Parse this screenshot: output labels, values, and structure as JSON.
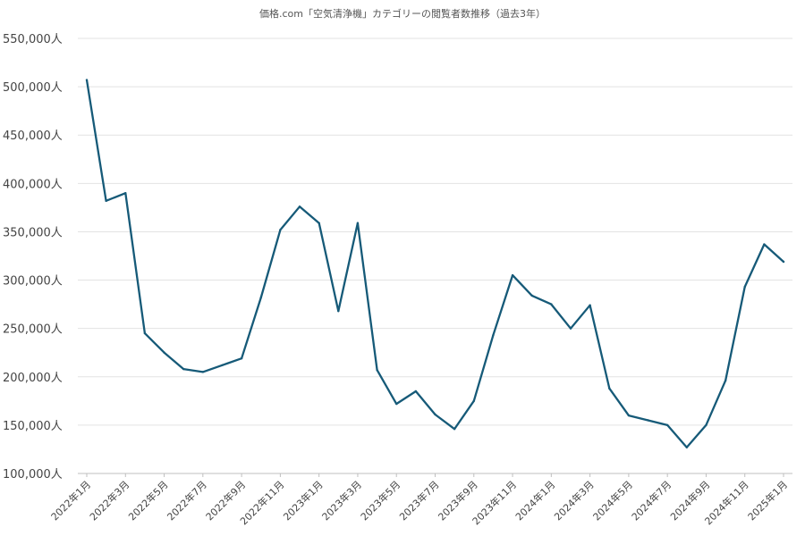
{
  "chart_data": {
    "type": "line",
    "title": "価格.com「空気清浄機」カテゴリーの閲覧者数推移（過去3年）",
    "xlabel": "",
    "ylabel": "",
    "ylim": [
      100000,
      550000
    ],
    "yticks": [
      100000,
      150000,
      200000,
      250000,
      300000,
      350000,
      400000,
      450000,
      500000,
      550000
    ],
    "ytick_labels": [
      "100,000人",
      "150,000人",
      "200,000人",
      "250,000人",
      "300,000人",
      "350,000人",
      "400,000人",
      "450,000人",
      "500,000人",
      "550,000人"
    ],
    "x": [
      "2022年1月",
      "2022年2月",
      "2022年3月",
      "2022年4月",
      "2022年5月",
      "2022年6月",
      "2022年7月",
      "2022年8月",
      "2022年9月",
      "2022年10月",
      "2022年11月",
      "2022年12月",
      "2023年1月",
      "2023年2月",
      "2023年3月",
      "2023年4月",
      "2023年5月",
      "2023年6月",
      "2023年7月",
      "2023年8月",
      "2023年9月",
      "2023年10月",
      "2023年11月",
      "2023年12月",
      "2024年1月",
      "2024年2月",
      "2024年3月",
      "2024年4月",
      "2024年5月",
      "2024年6月",
      "2024年7月",
      "2024年8月",
      "2024年9月",
      "2024年10月",
      "2024年11月",
      "2024年12月",
      "2025年1月"
    ],
    "xtick_labels": [
      "2022年1月",
      "2022年3月",
      "2022年5月",
      "2022年7月",
      "2022年9月",
      "2022年11月",
      "2023年1月",
      "2023年3月",
      "2023年5月",
      "2023年7月",
      "2023年9月",
      "2023年11月",
      "2024年1月",
      "2024年3月",
      "2024年5月",
      "2024年7月",
      "2024年9月",
      "2024年11月",
      "2025年1月"
    ],
    "series": [
      {
        "values": [
          507000,
          382000,
          390000,
          245000,
          225000,
          208000,
          205000,
          212000,
          219000,
          282000,
          352000,
          376000,
          359000,
          268000,
          359000,
          207000,
          172000,
          185000,
          161000,
          146000,
          175000,
          243000,
          305000,
          284000,
          275000,
          250000,
          274000,
          188000,
          160000,
          155000,
          150000,
          127000,
          150000,
          196000,
          293000,
          337000,
          319000
        ],
        "color": "#165a78"
      }
    ],
    "grid": true,
    "legend": "none"
  }
}
